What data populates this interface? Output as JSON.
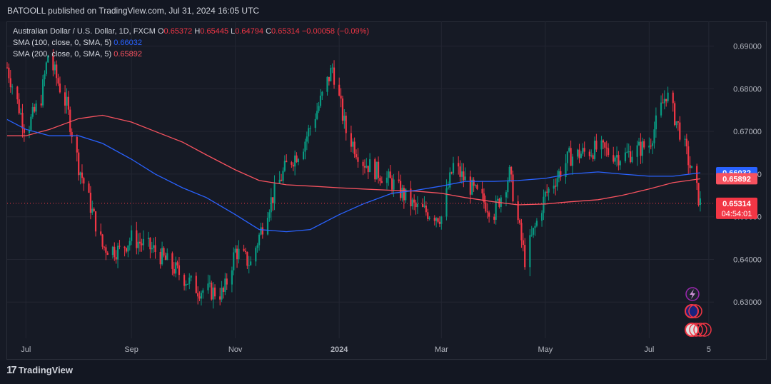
{
  "header": {
    "published_text": "BATOOLL published on TradingView.com, Jul 31, 2024 16:05 UTC"
  },
  "legend": {
    "symbol": "Australian Dollar / U.S. Dollar, 1D, FXCM",
    "o_label": "O",
    "o_value": "0.65372",
    "h_label": "H",
    "h_value": "0.65445",
    "l_label": "L",
    "l_value": "0.64794",
    "c_label": "C",
    "c_value": "0.65314",
    "change": "−0.00058 (−0.09%)",
    "sma100_label": "SMA (100, close, 0, SMA, 5)",
    "sma100_value": "0.66032",
    "sma200_label": "SMA (200, close, 0, SMA, 5)",
    "sma200_value": "0.65892"
  },
  "footer": {
    "logo_text": "TradingView"
  },
  "colors": {
    "up": "#089981",
    "down": "#f23645",
    "sma100": "#2962ff",
    "sma200": "#f7525f",
    "price_line": "#f23645"
  },
  "chart_data": {
    "type": "line",
    "ylim": [
      0.6215,
      0.6958
    ],
    "y_ticks": [
      "0.69000",
      "0.68000",
      "0.67000",
      "0.66000",
      "0.65000",
      "0.64000",
      "0.63000"
    ],
    "x_ticks": [
      "Jul",
      "Sep",
      "Nov",
      "2024",
      "Mar",
      "May",
      "Jul",
      "5"
    ],
    "price_labels": {
      "sma100": "0.66032",
      "sma200": "0.65892",
      "last": "0.65314",
      "countdown": "04:54:01"
    },
    "series": [
      {
        "name": "SMA (100, close, 0, SMA, 5)",
        "x": [
          "2023-06-20",
          "2023-07-01",
          "2023-07-15",
          "2023-08-01",
          "2023-08-15",
          "2023-09-01",
          "2023-09-15",
          "2023-10-01",
          "2023-10-15",
          "2023-11-01",
          "2023-11-15",
          "2023-12-01",
          "2023-12-15",
          "2024-01-01",
          "2024-01-15",
          "2024-02-01",
          "2024-02-15",
          "2024-03-01",
          "2024-03-15",
          "2024-04-01",
          "2024-04-15",
          "2024-05-01",
          "2024-05-15",
          "2024-06-01",
          "2024-06-15",
          "2024-07-01",
          "2024-07-15",
          "2024-07-31"
        ],
        "values": [
          0.6728,
          0.6705,
          0.669,
          0.669,
          0.6672,
          0.6635,
          0.66,
          0.6568,
          0.6545,
          0.6505,
          0.647,
          0.6465,
          0.647,
          0.6505,
          0.653,
          0.6555,
          0.6562,
          0.6572,
          0.6583,
          0.6583,
          0.6585,
          0.659,
          0.66,
          0.6605,
          0.66,
          0.6595,
          0.6595,
          0.6603
        ]
      },
      {
        "name": "SMA (200, close, 0, SMA, 5)",
        "x": [
          "2023-06-20",
          "2023-07-01",
          "2023-07-15",
          "2023-08-01",
          "2023-08-15",
          "2023-09-01",
          "2023-09-15",
          "2023-10-01",
          "2023-10-15",
          "2023-11-01",
          "2023-11-15",
          "2023-12-01",
          "2023-12-15",
          "2024-01-01",
          "2024-01-15",
          "2024-02-01",
          "2024-02-15",
          "2024-03-01",
          "2024-03-15",
          "2024-04-01",
          "2024-04-15",
          "2024-05-01",
          "2024-05-15",
          "2024-06-01",
          "2024-06-15",
          "2024-07-01",
          "2024-07-15",
          "2024-07-31"
        ],
        "values": [
          0.669,
          0.669,
          0.6705,
          0.673,
          0.6738,
          0.6722,
          0.67,
          0.6675,
          0.6645,
          0.661,
          0.6585,
          0.6575,
          0.6572,
          0.6568,
          0.6565,
          0.6562,
          0.656,
          0.6555,
          0.6545,
          0.6535,
          0.6528,
          0.653,
          0.6535,
          0.654,
          0.655,
          0.6565,
          0.658,
          0.6589
        ]
      },
      {
        "name": "AUD/USD close",
        "x": [
          "2023-06-20",
          "2023-07-01",
          "2023-07-10",
          "2023-07-14",
          "2023-07-25",
          "2023-08-01",
          "2023-08-15",
          "2023-08-25",
          "2023-09-01",
          "2023-09-15",
          "2023-10-01",
          "2023-10-10",
          "2023-10-25",
          "2023-11-01",
          "2023-11-10",
          "2023-11-20",
          "2023-12-01",
          "2023-12-10",
          "2023-12-20",
          "2023-12-28",
          "2024-01-05",
          "2024-01-15",
          "2024-02-01",
          "2024-02-15",
          "2024-03-01",
          "2024-03-08",
          "2024-03-20",
          "2024-04-01",
          "2024-04-10",
          "2024-04-19",
          "2024-05-01",
          "2024-05-15",
          "2024-06-01",
          "2024-06-15",
          "2024-07-01",
          "2024-07-11",
          "2024-07-20",
          "2024-07-31"
        ],
        "values": [
          0.685,
          0.67,
          0.678,
          0.688,
          0.676,
          0.662,
          0.643,
          0.642,
          0.645,
          0.642,
          0.636,
          0.633,
          0.632,
          0.642,
          0.639,
          0.652,
          0.662,
          0.666,
          0.676,
          0.685,
          0.67,
          0.663,
          0.658,
          0.652,
          0.65,
          0.662,
          0.656,
          0.651,
          0.66,
          0.64,
          0.655,
          0.664,
          0.666,
          0.664,
          0.667,
          0.679,
          0.669,
          0.6531
        ]
      }
    ]
  }
}
